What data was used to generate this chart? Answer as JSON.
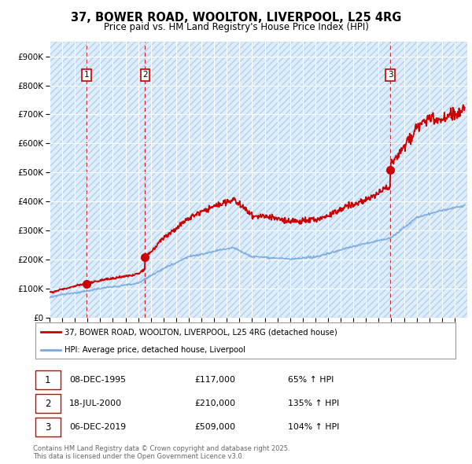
{
  "title": "37, BOWER ROAD, WOOLTON, LIVERPOOL, L25 4RG",
  "subtitle": "Price paid vs. HM Land Registry's House Price Index (HPI)",
  "ylim": [
    0,
    950000
  ],
  "yticks": [
    0,
    100000,
    200000,
    300000,
    400000,
    500000,
    600000,
    700000,
    800000,
    900000
  ],
  "ytick_labels": [
    "£0",
    "£100K",
    "£200K",
    "£300K",
    "£400K",
    "£500K",
    "£600K",
    "£700K",
    "£800K",
    "£900K"
  ],
  "plot_bg_color": "#ddeeff",
  "grid_color": "#ffffff",
  "sale_color": "#cc0000",
  "hpi_color": "#7aaadd",
  "title_fontsize": 10.5,
  "subtitle_fontsize": 8.5,
  "transactions": [
    {
      "label": "1",
      "price": 117000,
      "x": 1995.94
    },
    {
      "label": "2",
      "price": 210000,
      "x": 2000.55
    },
    {
      "label": "3",
      "price": 509000,
      "x": 2019.93
    }
  ],
  "legend_entries": [
    {
      "label": "37, BOWER ROAD, WOOLTON, LIVERPOOL, L25 4RG (detached house)",
      "color": "#cc0000"
    },
    {
      "label": "HPI: Average price, detached house, Liverpool",
      "color": "#7aaadd"
    }
  ],
  "table_rows": [
    {
      "num": "1",
      "date": "08-DEC-1995",
      "price": "£117,000",
      "hpi": "65% ↑ HPI"
    },
    {
      "num": "2",
      "date": "18-JUL-2000",
      "price": "£210,000",
      "hpi": "135% ↑ HPI"
    },
    {
      "num": "3",
      "date": "06-DEC-2019",
      "price": "£509,000",
      "hpi": "104% ↑ HPI"
    }
  ],
  "footnote": "Contains HM Land Registry data © Crown copyright and database right 2025.\nThis data is licensed under the Open Government Licence v3.0.",
  "xmin": 1993,
  "xmax": 2026
}
